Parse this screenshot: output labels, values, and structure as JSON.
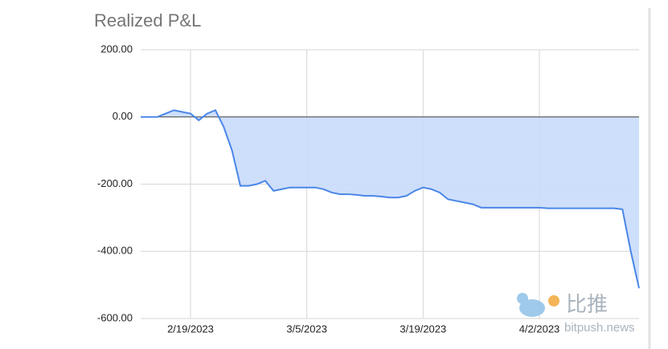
{
  "chart_data": {
    "type": "area",
    "title": "Realized P&L",
    "x": [
      "2/13/2023",
      "2/14/2023",
      "2/15/2023",
      "2/16/2023",
      "2/17/2023",
      "2/18/2023",
      "2/19/2023",
      "2/20/2023",
      "2/21/2023",
      "2/22/2023",
      "2/23/2023",
      "2/24/2023",
      "2/25/2023",
      "2/26/2023",
      "2/27/2023",
      "2/28/2023",
      "3/1/2023",
      "3/2/2023",
      "3/3/2023",
      "3/4/2023",
      "3/5/2023",
      "3/6/2023",
      "3/7/2023",
      "3/8/2023",
      "3/9/2023",
      "3/10/2023",
      "3/11/2023",
      "3/12/2023",
      "3/13/2023",
      "3/14/2023",
      "3/15/2023",
      "3/16/2023",
      "3/17/2023",
      "3/18/2023",
      "3/19/2023",
      "3/20/2023",
      "3/21/2023",
      "3/22/2023",
      "3/23/2023",
      "3/24/2023",
      "3/25/2023",
      "3/26/2023",
      "3/27/2023",
      "3/28/2023",
      "3/29/2023",
      "3/30/2023",
      "3/31/2023",
      "4/1/2023",
      "4/2/2023",
      "4/3/2023",
      "4/4/2023",
      "4/5/2023",
      "4/6/2023",
      "4/7/2023",
      "4/8/2023",
      "4/9/2023",
      "4/10/2023",
      "4/11/2023",
      "4/12/2023",
      "4/13/2023",
      "4/14/2023"
    ],
    "values": [
      0,
      0,
      0,
      10,
      20,
      15,
      10,
      -10,
      10,
      20,
      -30,
      -100,
      -205,
      -205,
      -200,
      -190,
      -220,
      -215,
      -210,
      -210,
      -210,
      -210,
      -215,
      -225,
      -230,
      -230,
      -232,
      -235,
      -235,
      -237,
      -240,
      -240,
      -235,
      -220,
      -210,
      -215,
      -225,
      -245,
      -250,
      -255,
      -260,
      -270,
      -270,
      -270,
      -270,
      -270,
      -270,
      -270,
      -270,
      -272,
      -272,
      -272,
      -272,
      -272,
      -272,
      -272,
      -272,
      -272,
      -275,
      -400,
      -510
    ],
    "color": "#4a86e8",
    "fill": "#c9dcfb",
    "xlim": [
      "2/13/2023",
      "4/14/2023"
    ],
    "xticks": [
      "2/19/2023",
      "3/5/2023",
      "3/19/2023",
      "4/2/2023"
    ],
    "ylim": [
      -600,
      200
    ],
    "yticks": [
      {
        "value": 200,
        "label": "200.00"
      },
      {
        "value": 0,
        "label": "0.00"
      },
      {
        "value": -200,
        "label": "-200.00"
      },
      {
        "value": -400,
        "label": "-400.00"
      },
      {
        "value": -600,
        "label": "-600.00"
      }
    ],
    "grid": true
  },
  "watermark": {
    "brand": "比推",
    "site": "bitpush.news"
  }
}
